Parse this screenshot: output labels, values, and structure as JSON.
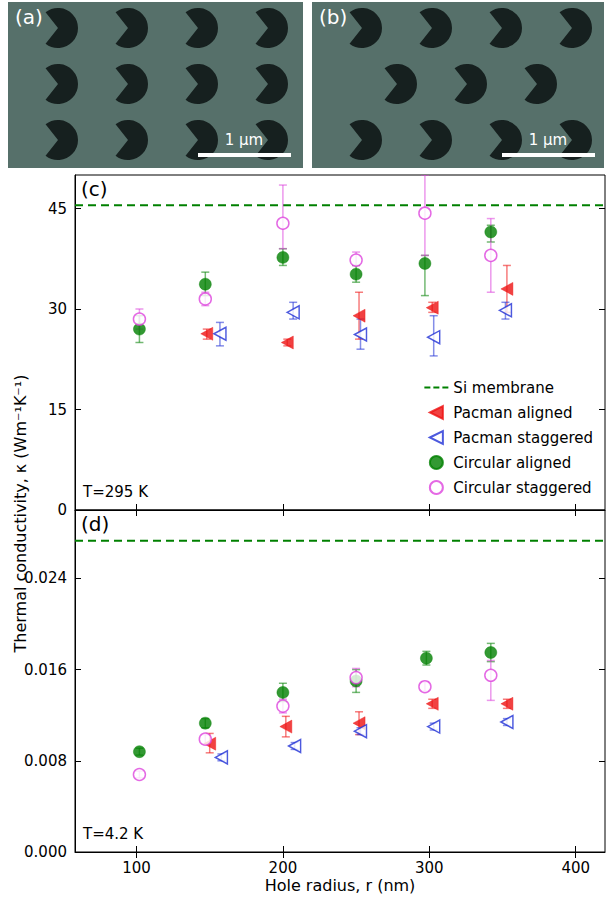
{
  "images": [
    {
      "label": "(a)",
      "scale_bar": "1 µm"
    },
    {
      "label": "(b)",
      "scale_bar": "1 µm"
    }
  ],
  "chart_data": [
    {
      "type": "scatter",
      "title": "(c)",
      "ylabel": "Thermal conductivity, κ (Wm⁻¹K⁻¹)",
      "annotations": [
        "T=295 K"
      ],
      "xlim": [
        58,
        420
      ],
      "xticks": [
        100,
        200,
        300,
        400
      ],
      "ylim": [
        0,
        50
      ],
      "yticks": [
        0,
        15,
        30,
        45
      ],
      "grid": false,
      "legend": "lower right",
      "tick_labels": "y",
      "series": [
        {
          "name": "Si membrane",
          "type": "hline",
          "color": "#008000",
          "line_style": "dashed",
          "value": 45.5
        },
        {
          "name": "Pacman aligned",
          "color": "#ee1111",
          "marker": "triangle-left",
          "x": [
            148,
            203,
            252,
            302,
            353
          ],
          "values": [
            26.3,
            25,
            29,
            30.2,
            33
          ],
          "errors": [
            [
              25.5,
              27
            ],
            [
              24.5,
              25.5
            ],
            [
              25.5,
              32.5
            ],
            [
              29.5,
              31
            ],
            [
              29.5,
              36.5
            ]
          ]
        },
        {
          "name": "Pacman staggered",
          "color": "#1f2fd6",
          "marker": "triangle-left-open",
          "x": [
            157,
            207,
            253,
            303,
            352
          ],
          "values": [
            26.3,
            29.5,
            26.2,
            25.8,
            29.8
          ],
          "errors": [
            [
              24.5,
              28
            ],
            [
              28.5,
              31
            ],
            [
              24,
              28.5
            ],
            [
              23,
              29
            ],
            [
              28.5,
              31
            ]
          ]
        },
        {
          "name": "Circular aligned",
          "color": "#008000",
          "marker": "circle",
          "x": [
            102,
            147,
            200,
            250,
            297,
            342
          ],
          "values": [
            27,
            33.7,
            37.7,
            35.2,
            36.8,
            41.5
          ],
          "errors": [
            [
              25,
              29
            ],
            [
              32,
              35.5
            ],
            [
              36.5,
              39
            ],
            [
              34,
              36.5
            ],
            [
              32,
              38
            ],
            [
              40,
              42.5
            ]
          ]
        },
        {
          "name": "Circular staggered",
          "color": "#dd44dd",
          "marker": "circle-open",
          "x": [
            102,
            147,
            200,
            250,
            297,
            342
          ],
          "values": [
            28.5,
            31.5,
            42.8,
            37.3,
            44.3,
            38
          ],
          "errors": [
            [
              27,
              30
            ],
            [
              30.5,
              32.5
            ],
            [
              39,
              48.5
            ],
            [
              36.5,
              38.5
            ],
            [
              38,
              50
            ],
            [
              32.5,
              43.5
            ]
          ]
        }
      ]
    },
    {
      "type": "scatter",
      "title": "(d)",
      "xlabel": "Hole radius, r (nm)",
      "annotations": [
        "T=4.2 K"
      ],
      "xlim": [
        58,
        420
      ],
      "xticks": [
        100,
        200,
        300,
        400
      ],
      "ylim": [
        0,
        0.03
      ],
      "yticks": [
        {
          "value": 0,
          "label": "0.000"
        },
        0.008,
        0.016,
        0.024
      ],
      "grid": false,
      "series": [
        {
          "name": "Si membrane",
          "type": "hline",
          "color": "#008000",
          "line_style": "dashed",
          "value": 0.0273
        },
        {
          "name": "Pacman aligned",
          "color": "#ee1111",
          "marker": "triangle-left",
          "x": [
            150,
            202,
            252,
            302,
            353
          ],
          "values": [
            0.0095,
            0.011,
            0.0113,
            0.013,
            0.013
          ],
          "errors": [
            [
              0.0087,
              0.0104
            ],
            [
              0.0101,
              0.0119
            ],
            [
              0.0103,
              0.0123
            ],
            [
              0.0126,
              0.0134
            ],
            [
              0.0126,
              0.0134
            ]
          ]
        },
        {
          "name": "Pacman staggered",
          "color": "#1f2fd6",
          "marker": "triangle-left-open",
          "x": [
            158,
            208,
            253,
            303,
            353
          ],
          "values": [
            0.0083,
            0.0093,
            0.0106,
            0.011,
            0.0114
          ],
          "errors": [
            [
              0.008,
              0.0086
            ],
            [
              0.009,
              0.0096
            ],
            [
              0.0103,
              0.0109
            ],
            [
              0.0107,
              0.0113
            ],
            [
              0.0111,
              0.0117
            ]
          ]
        },
        {
          "name": "Circular aligned",
          "color": "#008000",
          "marker": "circle",
          "x": [
            102,
            147,
            200,
            250,
            298,
            342
          ],
          "values": [
            0.0088,
            0.0113,
            0.014,
            0.015,
            0.017,
            0.0175
          ],
          "errors": [
            [
              0.0085,
              0.0091
            ],
            [
              0.0109,
              0.0117
            ],
            [
              0.0132,
              0.0148
            ],
            [
              0.014,
              0.016
            ],
            [
              0.0164,
              0.0176
            ],
            [
              0.0167,
              0.0183
            ]
          ]
        },
        {
          "name": "Circular staggered",
          "color": "#dd44dd",
          "marker": "circle-open",
          "x": [
            102,
            147,
            200,
            250,
            297,
            342
          ],
          "values": [
            0.0068,
            0.0099,
            0.0128,
            0.0153,
            0.0145,
            0.0155
          ],
          "errors": [
            [
              0.0065,
              0.0071
            ],
            [
              0.0095,
              0.0103
            ],
            [
              0.0122,
              0.0134
            ],
            [
              0.0145,
              0.0161
            ],
            [
              0.0141,
              0.0149
            ],
            [
              0.0133,
              0.0168
            ]
          ]
        }
      ]
    }
  ]
}
